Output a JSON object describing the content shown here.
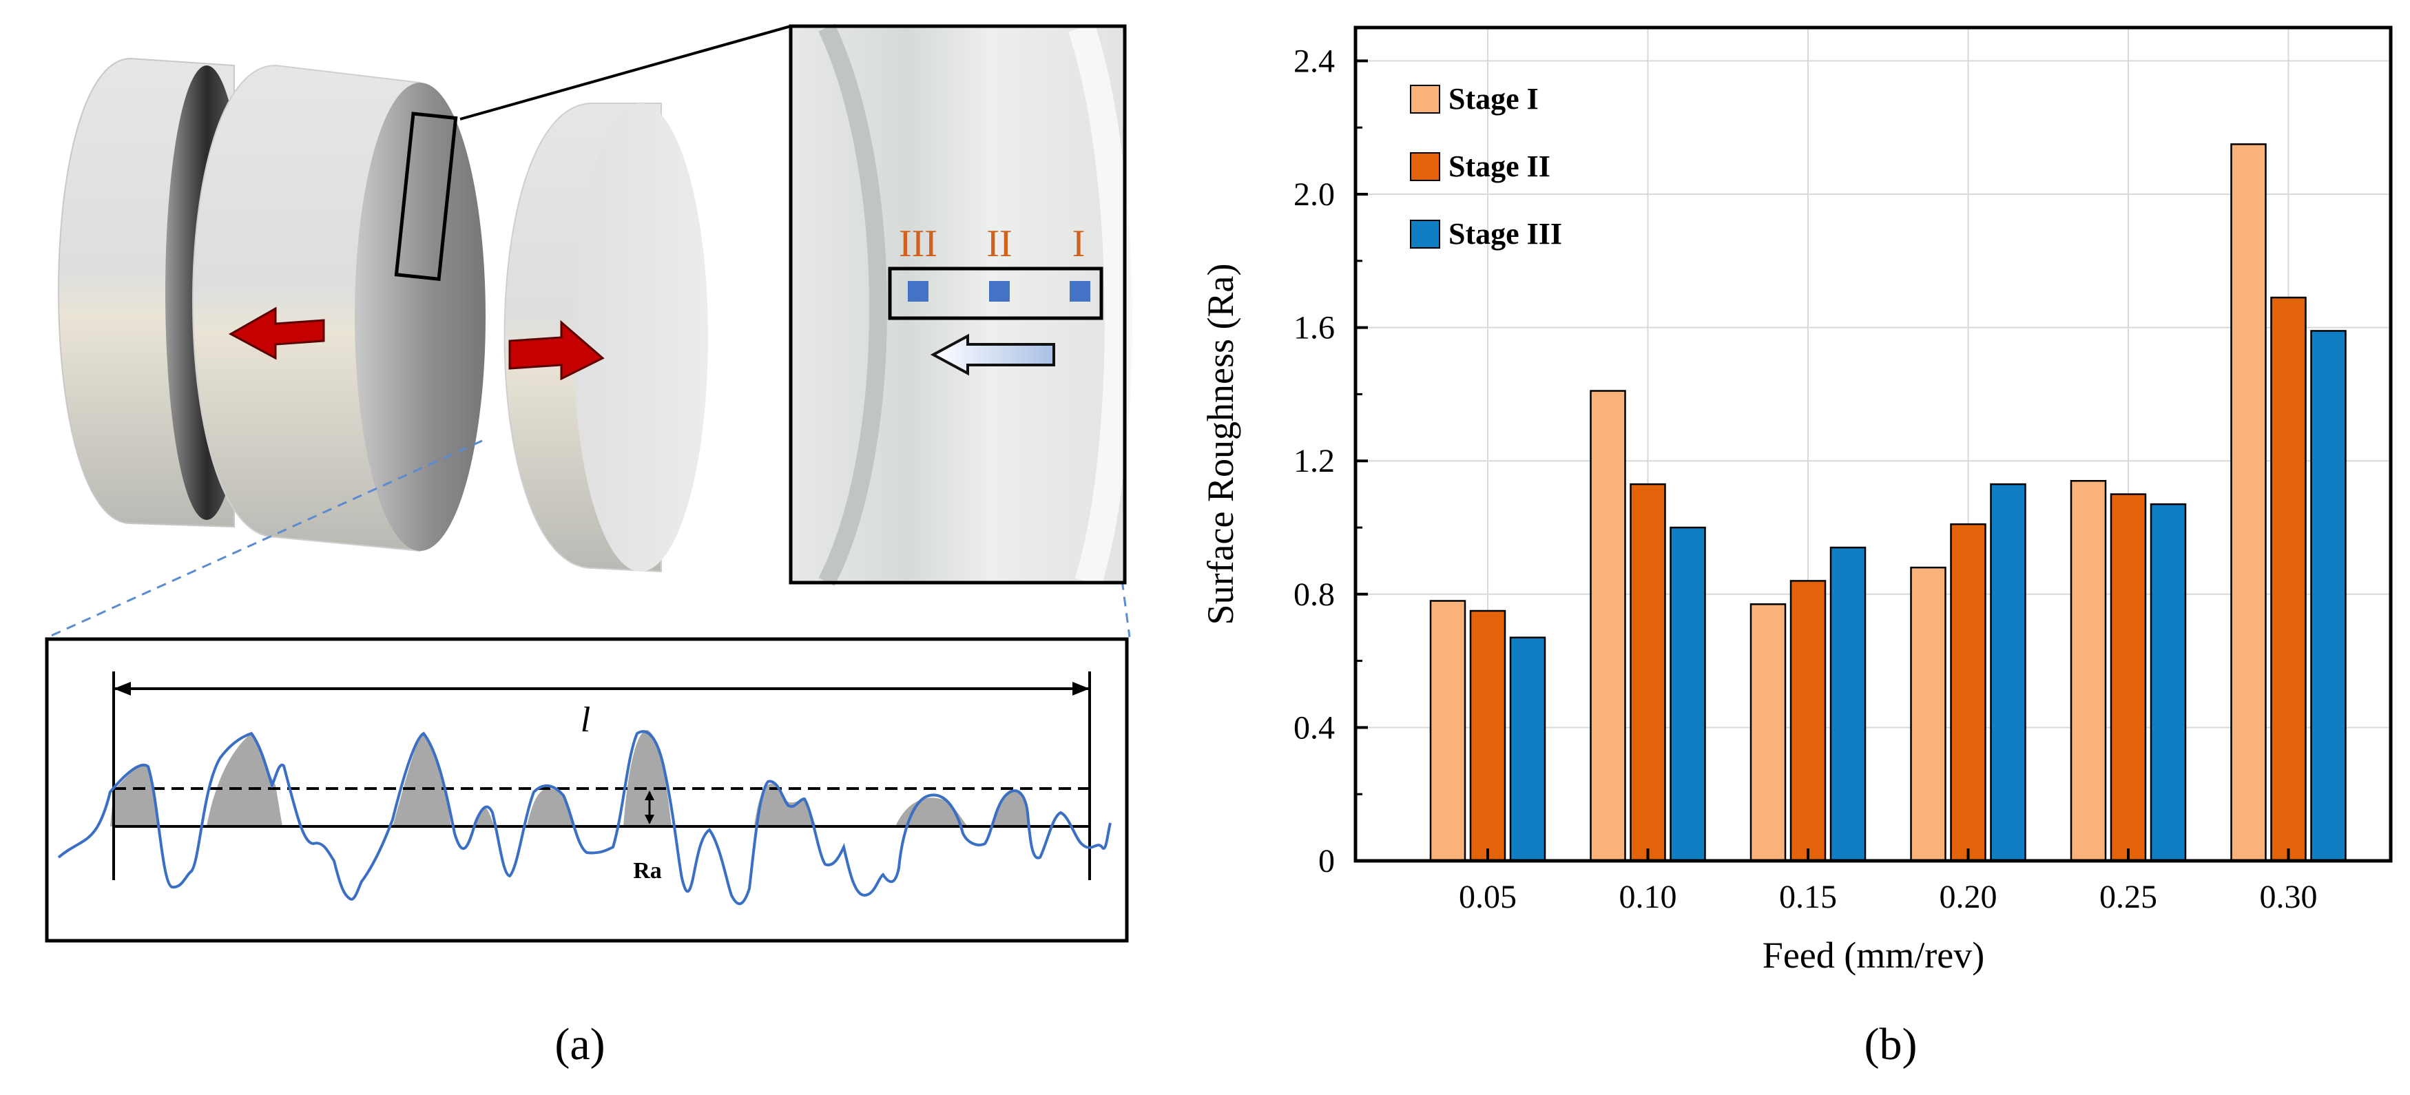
{
  "figure": {
    "panel_a_label": "(a)",
    "panel_b_label": "(b)",
    "schematic": {
      "stage_labels": [
        "III",
        "II",
        "I"
      ],
      "length_symbol": "l",
      "roughness_symbol": "Ra"
    }
  },
  "colors": {
    "stage1": "#f9b27a",
    "stage2": "#e2630a",
    "stage3": "#0f7ec2",
    "arrow_red": "#c40000",
    "profile_line": "#3a6fc4",
    "profile_fill": "#a8a8a8",
    "marker_blue": "#4472c4",
    "stage_text": "#d0621e"
  },
  "chart_data": {
    "type": "bar",
    "title": "",
    "xlabel": "Feed (mm/rev)",
    "ylabel": "Surface Roughness (Ra)",
    "categories": [
      "0.05",
      "0.10",
      "0.15",
      "0.20",
      "0.25",
      "0.30"
    ],
    "ylim": [
      0,
      2.5
    ],
    "yticks": [
      "0",
      "0.4",
      "0.8",
      "1.2",
      "1.6",
      "2.0",
      "2.4"
    ],
    "grid": true,
    "legend_position": "top-left",
    "series": [
      {
        "name": "Stage I",
        "values": [
          0.78,
          1.41,
          0.77,
          0.88,
          1.14,
          2.15
        ]
      },
      {
        "name": "Stage II",
        "values": [
          0.75,
          1.13,
          0.84,
          1.01,
          1.1,
          1.69
        ]
      },
      {
        "name": "Stage III",
        "values": [
          0.67,
          1.0,
          0.94,
          1.13,
          1.07,
          1.59
        ]
      }
    ]
  }
}
